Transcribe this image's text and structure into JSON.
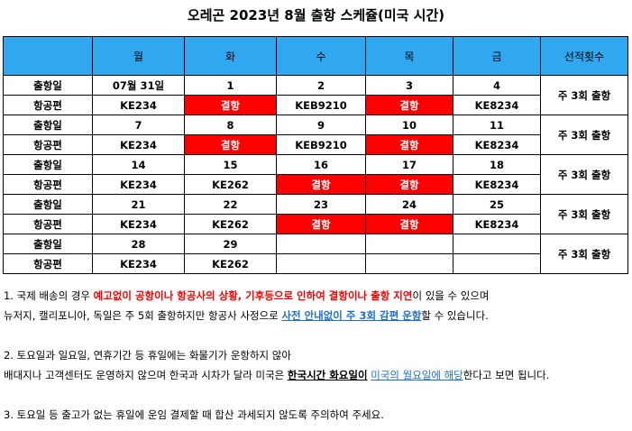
{
  "title": "오레곤 2023년 8월 출항 스케쥴(미국 시간)",
  "header": [
    "",
    "월",
    "화",
    "수",
    "목",
    "금",
    "선적횟수"
  ],
  "row_labels": {
    "date": "출항일",
    "flight": "항공편"
  },
  "weeks": [
    {
      "dates": [
        "07월 31일",
        "1",
        "2",
        "3",
        "4"
      ],
      "flights": [
        "KE234",
        "결항",
        "KEB9210",
        "결항",
        "KE8234"
      ],
      "weekly": "주 3회 출항"
    },
    {
      "dates": [
        "7",
        "8",
        "9",
        "10",
        "11"
      ],
      "flights": [
        "KE234",
        "결항",
        "KEB9210",
        "결항",
        "KE8234"
      ],
      "weekly": "주 3회 출항"
    },
    {
      "dates": [
        "14",
        "15",
        "16",
        "17",
        "18"
      ],
      "flights": [
        "KE234",
        "KE262",
        "결항",
        "결항",
        "KE8234"
      ],
      "weekly": "주 3회 출항"
    },
    {
      "dates": [
        "21",
        "22",
        "23",
        "24",
        "25"
      ],
      "flights": [
        "KE234",
        "KE262",
        "결항",
        "결항",
        "KE8234"
      ],
      "weekly": "주 3회 출항"
    },
    {
      "dates": [
        "28",
        "29",
        "",
        "",
        ""
      ],
      "flights": [
        "KE234",
        "KE262",
        "",
        "",
        ""
      ],
      "weekly": "주 3회 출항"
    }
  ],
  "cancel_label": "결항",
  "colors": {
    "header_bg": "#2fa8f0",
    "cancel_bg": "#ff0000",
    "link_blue": "#1e6fd9"
  },
  "notes": {
    "n1a": "1. 국제 배송의 경우 ",
    "n1b": "예고없이 공항이나 항공사의 상황, 기후등으로 인하여 결항이나 출항 지연",
    "n1c": "이 있을 수 있으며",
    "n1d": "뉴저지, 캘리포니아, 독일은 주 5회 출항하지만 항공사 사정으로 ",
    "n1e": "사전 안내없이 주 3회 감편 운항",
    "n1f": "할 수 있습니다.",
    "n2a": "2. 토요일과 일요일, 연휴기간 등 휴일에는 화물기가 운항하지 않아",
    "n2b": "배대지나 고객센터도 운영하지 않으며 한국과 시차가 달라 미국은 ",
    "n2c": "한국시간 화요일이",
    "n2d": " ",
    "n2e": "미국의 월요일에 해당",
    "n2f": "한다고 보면 됩니다.",
    "n3": "3. 토요일 등 출고가 없는 휴일에 운임 결제할 때 합산 과세되지 않도록 주의하여 주세요."
  }
}
